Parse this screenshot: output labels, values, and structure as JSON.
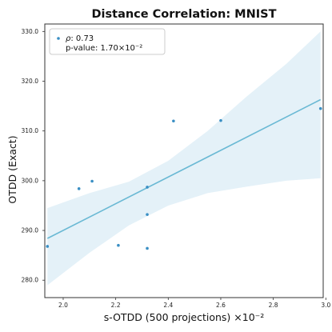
{
  "chart_data": {
    "type": "scatter",
    "title": "Distance Correlation: MNIST",
    "xlabel": "s-OTDD (500 projections) ×10⁻²",
    "ylabel": "OTDD (Exact)",
    "xlim": [
      1.93,
      2.99
    ],
    "ylim": [
      276.5,
      331.5
    ],
    "x_ticks": [
      2.0,
      2.2,
      2.4,
      2.6,
      2.8,
      3.0
    ],
    "x_tick_labels": [
      "2.0",
      "2.2",
      "2.4",
      "2.6",
      "2.8",
      "3.0"
    ],
    "y_ticks": [
      280,
      290,
      300,
      310,
      320,
      330
    ],
    "y_tick_labels": [
      "280.0",
      "290.0",
      "300.0",
      "310.0",
      "320.0",
      "330.0"
    ],
    "grid": false,
    "legend_position": "top-left",
    "legend": {
      "rho_symbol": "ρ",
      "rho_text": ": 0.73",
      "pvalue_text": "p-value: 1.70×10⁻²"
    },
    "series": [
      {
        "points": [
          {
            "x": 1.94,
            "y": 286.8
          },
          {
            "x": 2.06,
            "y": 298.4
          },
          {
            "x": 2.11,
            "y": 299.9
          },
          {
            "x": 2.21,
            "y": 287.0
          },
          {
            "x": 2.32,
            "y": 286.4
          },
          {
            "x": 2.32,
            "y": 293.2
          },
          {
            "x": 2.32,
            "y": 298.7
          },
          {
            "x": 2.42,
            "y": 312.0
          },
          {
            "x": 2.6,
            "y": 312.1
          },
          {
            "x": 2.98,
            "y": 314.5
          }
        ]
      }
    ],
    "fit_line": {
      "x": [
        1.94,
        2.98
      ],
      "y": [
        288.4,
        316.3
      ]
    },
    "confidence_band": [
      {
        "x": 1.94,
        "lower": 279.0,
        "upper": 294.5
      },
      {
        "x": 2.1,
        "lower": 285.5,
        "upper": 297.5
      },
      {
        "x": 2.25,
        "lower": 291.0,
        "upper": 299.8
      },
      {
        "x": 2.4,
        "lower": 295.0,
        "upper": 304.0
      },
      {
        "x": 2.55,
        "lower": 297.5,
        "upper": 310.0
      },
      {
        "x": 2.7,
        "lower": 298.8,
        "upper": 317.0
      },
      {
        "x": 2.85,
        "lower": 300.0,
        "upper": 323.5
      },
      {
        "x": 2.98,
        "lower": 300.5,
        "upper": 330.0
      }
    ],
    "colors": {
      "point": "#3a8fc4",
      "line": "#6ab9d4",
      "band": "#e4f1f8",
      "axes": "#333333",
      "legend_border": "#cccccc"
    }
  }
}
